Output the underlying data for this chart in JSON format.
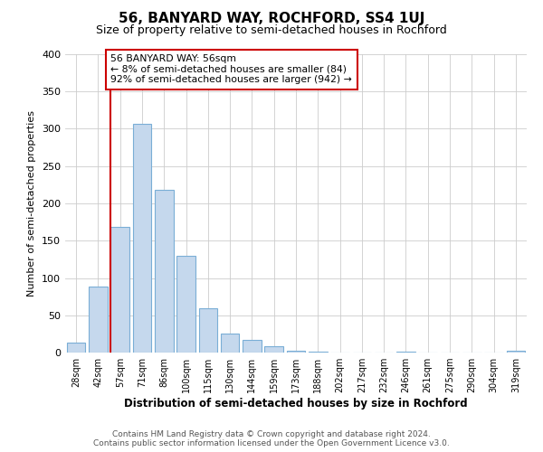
{
  "title": "56, BANYARD WAY, ROCHFORD, SS4 1UJ",
  "subtitle": "Size of property relative to semi-detached houses in Rochford",
  "xlabel": "Distribution of semi-detached houses by size in Rochford",
  "ylabel": "Number of semi-detached properties",
  "categories": [
    "28sqm",
    "42sqm",
    "57sqm",
    "71sqm",
    "86sqm",
    "100sqm",
    "115sqm",
    "130sqm",
    "144sqm",
    "159sqm",
    "173sqm",
    "188sqm",
    "202sqm",
    "217sqm",
    "232sqm",
    "246sqm",
    "261sqm",
    "275sqm",
    "290sqm",
    "304sqm",
    "319sqm"
  ],
  "values": [
    13,
    88,
    168,
    307,
    218,
    130,
    60,
    26,
    17,
    9,
    3,
    1,
    0,
    0,
    0,
    1,
    0,
    0,
    0,
    0,
    2
  ],
  "bar_color": "#c5d8ed",
  "bar_edge_color": "#7aaed6",
  "highlight_line_color": "#cc0000",
  "annotation_title": "56 BANYARD WAY: 56sqm",
  "annotation_line1": "← 8% of semi-detached houses are smaller (84)",
  "annotation_line2": "92% of semi-detached houses are larger (942) →",
  "footer_line1": "Contains HM Land Registry data © Crown copyright and database right 2024.",
  "footer_line2": "Contains public sector information licensed under the Open Government Licence v3.0.",
  "ylim": [
    0,
    400
  ],
  "background_color": "#ffffff",
  "grid_color": "#cccccc"
}
